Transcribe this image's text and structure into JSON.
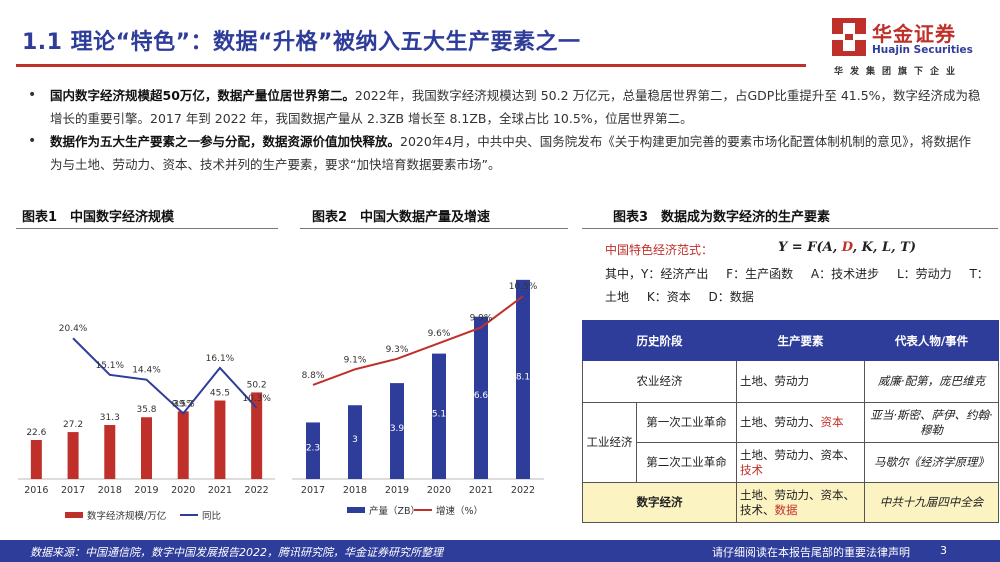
{
  "header": {
    "title": "1.1 理论“特色”：数据“升格”被纳入五大生产要素之一",
    "logo_cn": "华金证券",
    "logo_en": "Huajin Securities",
    "logo_slogan": "华发集团旗下企业",
    "brand_red": "#c0302a",
    "brand_blue": "#2f3d9a"
  },
  "bullets": [
    {
      "bold": "国内数字经济规模超50万亿，数据产量位居世界第二。",
      "text": "2022年，我国数字经济规模达到 50.2 万亿元，总量稳居世界第二，占GDP比重提升至 41.5%，数字经济成为稳增长的重要引擎。2017 年到 2022 年，我国数据产量从 2.3ZB 增长至 8.1ZB，全球占比 10.5%，位居世界第二。"
    },
    {
      "bold": "数据作为五大生产要素之一参与分配，数据资源价值加快释放。",
      "text": "2020年4月，中共中央、国务院发布《关于构建更加完善的要素市场化配置体制机制的意见》，将数据作为与土地、劳动力、资本、技术并列的生产要素，要求“加快培育数据要素市场”。"
    }
  ],
  "chart1": {
    "panel_title": "图表1　中国数字经济规模",
    "chart_data": {
      "type": "bar",
      "categories": [
        "2016",
        "2017",
        "2018",
        "2019",
        "2020",
        "2021",
        "2022"
      ],
      "series": [
        {
          "name": "数字经济规模/万亿",
          "type": "bar",
          "values": [
            22.6,
            27.2,
            31.3,
            35.8,
            39.2,
            45.5,
            50.2
          ],
          "color": "#c0302a"
        },
        {
          "name": "同比",
          "type": "line",
          "values": [
            null,
            20.4,
            15.1,
            14.4,
            9.5,
            16.1,
            10.3
          ],
          "labels": [
            "",
            "20.4%",
            "15.1%",
            "14.4%",
            "9.5%",
            "16.1%",
            "10.3%"
          ],
          "color": "#2f3d9a"
        }
      ],
      "ylim": [
        0,
        120
      ],
      "y2lim": [
        0,
        30
      ],
      "legend": "bottom"
    }
  },
  "chart2": {
    "panel_title": "图表2　中国大数据产量及增速",
    "chart_data": {
      "type": "bar",
      "categories": [
        "2017",
        "2018",
        "2019",
        "2020",
        "2021",
        "2022"
      ],
      "series": [
        {
          "name": "产量（ZB）",
          "type": "bar",
          "values": [
            2.3,
            3,
            3.9,
            5.1,
            6.6,
            8.1
          ],
          "labels": [
            "2.3",
            "3",
            "3.9",
            "5.1",
            "6.6",
            "8.1"
          ],
          "color": "#2f3d9a"
        },
        {
          "name": "增速（%）",
          "type": "line",
          "values": [
            8.8,
            9.1,
            9.3,
            9.6,
            9.9,
            10.5
          ],
          "labels": [
            "8.8%",
            "9.1%",
            "9.3%",
            "9.6%",
            "9.9%",
            "10.5%"
          ],
          "color": "#c0302a"
        }
      ],
      "ylim": [
        0,
        8.5
      ],
      "y2lim": [
        7,
        11
      ],
      "legend": "bottom"
    }
  },
  "chart3": {
    "panel_title": "图表3　数据成为数字经济的生产要素",
    "formula_label": "中国特色经济范式：",
    "formula_pre": "Y = F(A, ",
    "formula_red": "D",
    "formula_post": ", K, L, T)",
    "symbols": [
      "其中，Y：经济产出",
      "F：生产函数",
      "A：技术进步",
      "L：劳动力",
      "T：土地",
      "K：资本",
      "D：数据"
    ],
    "table": {
      "headers": [
        "历史阶段",
        "生产要素",
        "代表人物/事件"
      ],
      "agri": {
        "stage": "农业经济",
        "factors": "土地、劳动力",
        "person": "威廉·配第，庞巴维克"
      },
      "industry": {
        "stage": "工业经济",
        "rev1": {
          "name": "第一次工业革命",
          "factors": "土地、劳动力、",
          "factors_red": "资本",
          "person": "亚当·斯密、萨伊、约翰·穆勒"
        },
        "rev2": {
          "name": "第二次工业革命",
          "factors": "土地、劳动力、资本、",
          "factors_red": "技术",
          "person": "马歇尔《经济学原理》"
        }
      },
      "digital": {
        "stage": "数字经济",
        "factors": "土地、劳动力、资本、技术、",
        "factors_red": "数据",
        "person": "中共十九届四中全会"
      }
    }
  },
  "footer": {
    "source": "数据来源：中国通信院，数字中国发展报告2022，腾讯研究院，华金证券研究所整理",
    "notice": "请仔细阅读在本报告尾部的重要法律声明",
    "page": "3"
  }
}
